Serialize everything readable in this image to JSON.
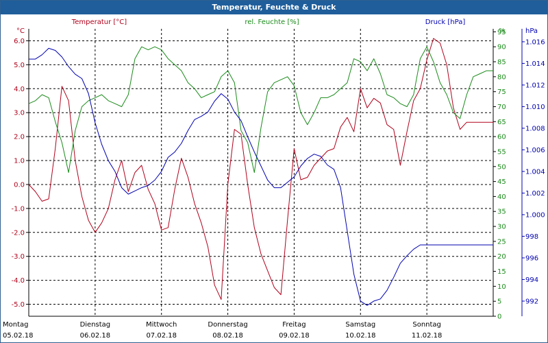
{
  "window": {
    "title": "Temperatur, Feuchte & Druck"
  },
  "chart_data": {
    "type": "line",
    "title": "Temperatur, Feuchte & Druck",
    "grid": true,
    "xlim": [
      0,
      7
    ],
    "x_ticks": [
      {
        "day": "Montag",
        "date": "05.02.18"
      },
      {
        "day": "Dienstag",
        "date": "06.02.18"
      },
      {
        "day": "Mittwoch",
        "date": "07.02.18"
      },
      {
        "day": "Donnerstag",
        "date": "08.02.18"
      },
      {
        "day": "Freitag",
        "date": "09.02.18"
      },
      {
        "day": "Samstag",
        "date": "10.02.18"
      },
      {
        "day": "Sonntag",
        "date": "11.02.18"
      }
    ],
    "axes": {
      "temperature": {
        "label": "Temperatur [°C]",
        "unit": "°C",
        "color": "#b0001a",
        "min": -5.5,
        "max": 6.5,
        "ticks": [
          "-5.0",
          "-4.0",
          "-3.0",
          "-2.0",
          "-1.0",
          "0.0",
          "1.0",
          "2.0",
          "3.0",
          "4.0",
          "5.0",
          "6.0"
        ]
      },
      "humidity": {
        "label": "rel. Feuchte [%]",
        "unit": "%",
        "color": "#1a8a1a",
        "min": 0,
        "max": 96,
        "ticks": [
          "0",
          "5",
          "10",
          "15",
          "20",
          "25",
          "30",
          "35",
          "40",
          "45",
          "50",
          "55",
          "60",
          "65",
          "70",
          "75",
          "80",
          "85",
          "90",
          "95"
        ]
      },
      "pressure": {
        "label": "Druck [hPa]",
        "unit": "hPa",
        "color": "#0000b0",
        "min": 990.6,
        "max": 1017.2,
        "ticks": [
          "992",
          "994",
          "996",
          "998",
          "1.000",
          "1.002",
          "1.004",
          "1.006",
          "1.008",
          "1.010",
          "1.012",
          "1.014",
          "1.016"
        ]
      }
    },
    "series": [
      {
        "name": "Temperatur",
        "axis": "temperature",
        "color": "#b0001a",
        "x": [
          0,
          0.1,
          0.2,
          0.3,
          0.4,
          0.5,
          0.6,
          0.7,
          0.8,
          0.9,
          1.0,
          1.1,
          1.2,
          1.3,
          1.4,
          1.5,
          1.6,
          1.7,
          1.8,
          1.9,
          2.0,
          2.1,
          2.2,
          2.3,
          2.4,
          2.5,
          2.6,
          2.7,
          2.8,
          2.9,
          3.0,
          3.1,
          3.2,
          3.3,
          3.4,
          3.5,
          3.6,
          3.7,
          3.8,
          3.9,
          4.0,
          4.1,
          4.2,
          4.3,
          4.4,
          4.5,
          4.6,
          4.7,
          4.8,
          4.9,
          5.0,
          5.1,
          5.2,
          5.3,
          5.4,
          5.5,
          5.6,
          5.7,
          5.8,
          5.9,
          6.0,
          6.1,
          6.2,
          6.3,
          6.4,
          6.5,
          6.6,
          6.7,
          6.8,
          6.9,
          7.0
        ],
        "values": [
          0.0,
          -0.3,
          -0.7,
          -0.6,
          1.5,
          4.1,
          3.5,
          1.0,
          -0.5,
          -1.5,
          -2.0,
          -1.6,
          -1.0,
          0.2,
          1.0,
          -0.3,
          0.5,
          0.8,
          -0.2,
          -0.8,
          -1.9,
          -1.8,
          -0.2,
          1.1,
          0.3,
          -0.8,
          -1.6,
          -2.6,
          -4.2,
          -4.8,
          0.0,
          2.3,
          2.1,
          0.0,
          -1.8,
          -2.9,
          -3.6,
          -4.3,
          -4.6,
          -1.5,
          1.5,
          0.2,
          0.3,
          0.8,
          1.1,
          1.4,
          1.5,
          2.4,
          2.8,
          2.2,
          4.0,
          3.2,
          3.6,
          3.4,
          2.5,
          2.3,
          0.8,
          2.2,
          3.5,
          4.0,
          5.2,
          6.1,
          5.9,
          5.0,
          3.2,
          2.3,
          2.6,
          2.6,
          2.6,
          2.6,
          2.6
        ]
      },
      {
        "name": "rel. Feuchte",
        "axis": "humidity",
        "color": "#1a8a1a",
        "x": [
          0,
          0.1,
          0.2,
          0.3,
          0.4,
          0.5,
          0.6,
          0.7,
          0.8,
          0.9,
          1.0,
          1.1,
          1.2,
          1.3,
          1.4,
          1.5,
          1.6,
          1.7,
          1.8,
          1.9,
          2.0,
          2.1,
          2.2,
          2.3,
          2.4,
          2.5,
          2.6,
          2.7,
          2.8,
          2.9,
          3.0,
          3.1,
          3.2,
          3.3,
          3.4,
          3.5,
          3.6,
          3.7,
          3.8,
          3.9,
          4.0,
          4.1,
          4.2,
          4.3,
          4.4,
          4.5,
          4.6,
          4.7,
          4.8,
          4.9,
          5.0,
          5.1,
          5.2,
          5.3,
          5.4,
          5.5,
          5.6,
          5.7,
          5.8,
          5.9,
          6.0,
          6.1,
          6.2,
          6.3,
          6.4,
          6.5,
          6.6,
          6.7,
          6.8,
          6.9,
          7.0
        ],
        "values": [
          71,
          72,
          74,
          73,
          65,
          58,
          48,
          62,
          70,
          72,
          73,
          74,
          72,
          71,
          70,
          74,
          86,
          90,
          89,
          90,
          89,
          86,
          84,
          82,
          78,
          76,
          73,
          74,
          75,
          80,
          82,
          78,
          62,
          58,
          48,
          63,
          75,
          78,
          79,
          80,
          77,
          68,
          64,
          68,
          73,
          73,
          74,
          76,
          78,
          86,
          85,
          82,
          86,
          81,
          74,
          73,
          71,
          70,
          74,
          86,
          90,
          85,
          78,
          74,
          68,
          66,
          74,
          80,
          81,
          82,
          82
        ]
      },
      {
        "name": "Druck",
        "axis": "pressure",
        "color": "#0000b0",
        "x": [
          0,
          0.1,
          0.2,
          0.3,
          0.4,
          0.5,
          0.6,
          0.7,
          0.8,
          0.9,
          1.0,
          1.1,
          1.2,
          1.3,
          1.4,
          1.5,
          1.6,
          1.7,
          1.8,
          1.9,
          2.0,
          2.1,
          2.2,
          2.3,
          2.4,
          2.5,
          2.6,
          2.7,
          2.8,
          2.9,
          3.0,
          3.1,
          3.2,
          3.3,
          3.4,
          3.5,
          3.6,
          3.7,
          3.8,
          3.9,
          4.0,
          4.1,
          4.2,
          4.3,
          4.4,
          4.5,
          4.6,
          4.7,
          4.8,
          4.9,
          5.0,
          5.1,
          5.2,
          5.3,
          5.4,
          5.5,
          5.6,
          5.7,
          5.8,
          5.9,
          6.0,
          6.1,
          6.2,
          6.3,
          6.4,
          6.5,
          6.6,
          6.7,
          6.8,
          6.9,
          7.0
        ],
        "values": [
          1014.4,
          1014.4,
          1014.8,
          1015.4,
          1015.2,
          1014.6,
          1013.7,
          1013.0,
          1012.6,
          1011.2,
          1008.5,
          1006.5,
          1005.0,
          1004.0,
          1002.5,
          1001.9,
          1002.2,
          1002.5,
          1002.7,
          1003.2,
          1004.0,
          1005.3,
          1005.8,
          1006.6,
          1007.8,
          1008.8,
          1009.1,
          1009.5,
          1010.5,
          1011.2,
          1010.7,
          1009.5,
          1008.7,
          1007.2,
          1005.8,
          1004.5,
          1003.2,
          1002.5,
          1002.5,
          1003.0,
          1003.5,
          1004.5,
          1005.2,
          1005.6,
          1005.4,
          1004.6,
          1004.2,
          1002.5,
          998.5,
          994.5,
          992.0,
          991.6,
          992.0,
          992.2,
          993.0,
          994.2,
          995.5,
          996.2,
          996.8,
          997.2,
          997.2,
          997.2,
          997.2,
          997.2,
          997.2,
          997.2,
          997.2,
          997.2,
          997.2,
          997.2,
          997.2
        ]
      }
    ]
  }
}
